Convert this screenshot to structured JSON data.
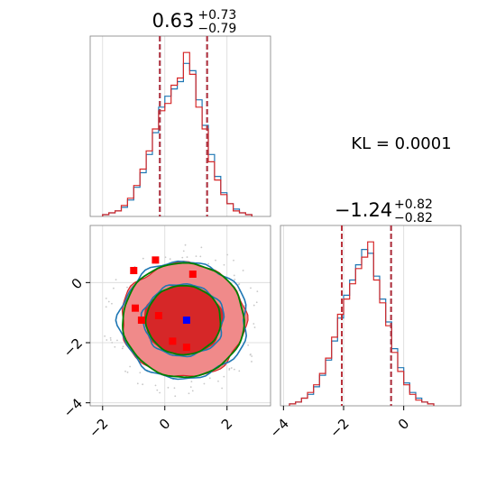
{
  "colors": {
    "blue": "#1f77b4",
    "red": "#d62728",
    "green": "#008000",
    "point_red": "#ff0000",
    "point_blue": "#0000ff",
    "grid": "#d9d9d9"
  },
  "annotation": "KL = 0.0001",
  "chart_data": [
    {
      "type": "histogram",
      "panel": "top-left",
      "title": {
        "value": "0.63",
        "plus": "+0.73",
        "minus": "−0.79"
      },
      "xlim": [
        -2.4,
        3.4
      ],
      "grid": true,
      "quantile_lines": [
        -0.16,
        1.36
      ],
      "bin_edges": [
        -2.0,
        -1.8,
        -1.6,
        -1.4,
        -1.2,
        -1.0,
        -0.8,
        -0.6,
        -0.4,
        -0.2,
        0.0,
        0.2,
        0.4,
        0.6,
        0.8,
        1.0,
        1.2,
        1.4,
        1.6,
        1.8,
        2.0,
        2.2,
        2.4,
        2.6,
        2.8
      ],
      "series": [
        {
          "color": "blue",
          "counts": [
            1,
            2,
            3,
            5,
            9,
            16,
            24,
            34,
            46,
            60,
            66,
            70,
            74,
            84,
            80,
            64,
            50,
            34,
            22,
            13,
            7,
            4,
            2,
            1
          ]
        },
        {
          "color": "red",
          "counts": [
            1,
            2,
            3,
            6,
            10,
            17,
            26,
            36,
            48,
            58,
            62,
            72,
            76,
            90,
            78,
            60,
            48,
            30,
            20,
            12,
            7,
            3,
            2,
            1
          ]
        }
      ]
    },
    {
      "type": "histogram",
      "panel": "bottom-right",
      "title": {
        "value": "−1.24",
        "plus": "+0.82",
        "minus": "−0.82"
      },
      "xlim": [
        -4.1,
        1.9
      ],
      "xticks": [
        "−4",
        "−2",
        "0"
      ],
      "xtick_values": [
        -4,
        -2,
        0
      ],
      "grid": true,
      "quantile_lines": [
        -2.06,
        -0.42
      ],
      "bin_edges": [
        -3.8,
        -3.6,
        -3.4,
        -3.2,
        -3.0,
        -2.8,
        -2.6,
        -2.4,
        -2.2,
        -2.0,
        -1.8,
        -1.6,
        -1.4,
        -1.2,
        -1.0,
        -0.8,
        -0.6,
        -0.4,
        -0.2,
        0.0,
        0.2,
        0.4,
        0.6,
        0.8,
        1.0
      ],
      "series": [
        {
          "color": "blue",
          "counts": [
            1,
            2,
            4,
            6,
            10,
            16,
            24,
            34,
            46,
            58,
            66,
            74,
            82,
            80,
            68,
            56,
            44,
            30,
            20,
            12,
            7,
            4,
            2,
            1
          ]
        },
        {
          "color": "red",
          "counts": [
            1,
            2,
            4,
            7,
            11,
            17,
            25,
            36,
            48,
            56,
            64,
            72,
            78,
            86,
            66,
            54,
            42,
            28,
            18,
            11,
            6,
            3,
            2,
            1
          ]
        }
      ]
    },
    {
      "type": "contour",
      "panel": "bottom-left",
      "xlim": [
        -2.4,
        3.4
      ],
      "ylim": [
        -4.1,
        1.9
      ],
      "xticks": [
        "−2",
        "0",
        "2"
      ],
      "xtick_values": [
        -2,
        0,
        2
      ],
      "yticks": [
        "−4",
        "−2",
        "0"
      ],
      "ytick_values": [
        -4,
        -2,
        0
      ],
      "grid": true,
      "center": [
        0.6,
        -1.25
      ],
      "red_fill_levels": [
        {
          "rx": 1.25,
          "ry": 1.15
        },
        {
          "rx": 2.0,
          "ry": 1.9
        }
      ],
      "blue_contours": [
        {
          "rx": 1.3,
          "ry": 1.2
        },
        {
          "rx": 2.05,
          "ry": 1.95
        }
      ],
      "green_contours": [
        {
          "rx": 1.2,
          "ry": 1.15
        },
        {
          "rx": 1.95,
          "ry": 1.9
        }
      ],
      "red_points": [
        [
          -1.0,
          0.4
        ],
        [
          -0.3,
          0.75
        ],
        [
          0.9,
          0.28
        ],
        [
          -0.95,
          -0.85
        ],
        [
          -0.75,
          -1.25
        ],
        [
          0.25,
          -1.95
        ],
        [
          0.7,
          -2.15
        ],
        [
          -0.2,
          -1.1
        ]
      ],
      "blue_points": [
        [
          0.7,
          -1.25
        ]
      ]
    }
  ]
}
